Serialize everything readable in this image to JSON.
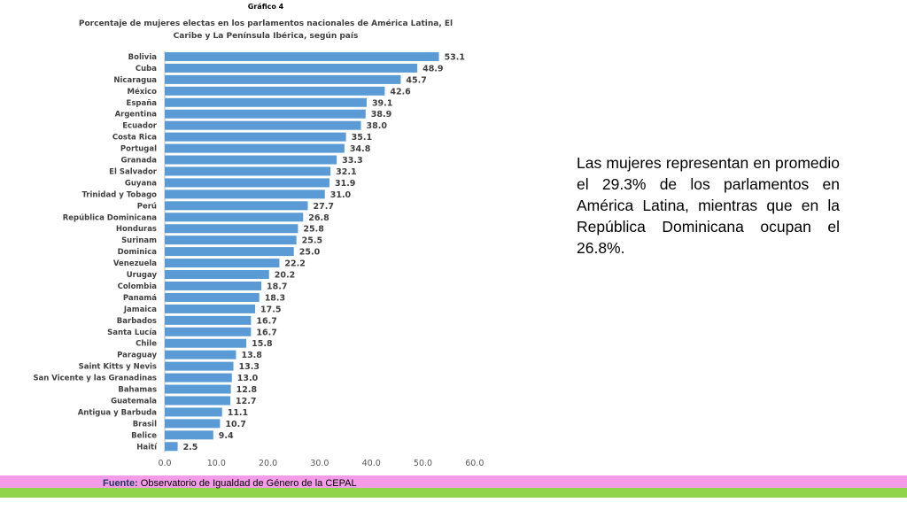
{
  "figure_label": "Gráfico 4",
  "chart_data": {
    "type": "bar",
    "orientation": "horizontal",
    "title": "Porcentaje de mujeres electas en los parlamentos nacionales de América Latina, El Caribe y La Península Ibérica, según país",
    "categories": [
      "Bolivia",
      "Cuba",
      "Nicaragua",
      "México",
      "España",
      "Argentina",
      "Ecuador",
      "Costa Rica",
      "Portugal",
      "Granada",
      "El Salvador",
      "Guyana",
      "Trinidad y Tobago",
      "Perú",
      "República Dominicana",
      "Honduras",
      "Surinam",
      "Dominica",
      "Venezuela",
      "Urugay",
      "Colombia",
      "Panamá",
      "Jamaica",
      "Barbados",
      "Santa Lucía",
      "Chile",
      "Paraguay",
      "Saint Kitts y Nevis",
      "San Vicente y las Granadinas",
      "Bahamas",
      "Guatemala",
      "Antigua y Barbuda",
      "Brasil",
      "Belice",
      "Haití"
    ],
    "values": [
      53.1,
      48.9,
      45.7,
      42.6,
      39.1,
      38.9,
      38.0,
      35.1,
      34.8,
      33.3,
      32.1,
      31.9,
      31.0,
      27.7,
      26.8,
      25.8,
      25.5,
      25.0,
      22.2,
      20.2,
      18.7,
      18.3,
      17.5,
      16.7,
      16.7,
      15.8,
      13.8,
      13.3,
      13.0,
      12.8,
      12.7,
      11.1,
      10.7,
      9.4,
      2.5
    ],
    "value_labels": [
      "53.1",
      "48.9",
      "45.7",
      "42.6",
      "39.1",
      "38.9",
      "38.0",
      "35.1",
      "34.8",
      "33.3",
      "32.1",
      "31.9",
      "31.0",
      "27.7",
      "26.8",
      "25.8",
      "25.5",
      "25.0",
      "22.2",
      "20.2",
      "18.7",
      "18.3",
      "17.5",
      "16.7",
      "16.7",
      "15.8",
      "13.8",
      "13.3",
      "13.0",
      "12.8",
      "12.7",
      "11.1",
      "10.7",
      "9.4",
      "2.5"
    ],
    "xlim": [
      0,
      60
    ],
    "xticks": [
      "0.0",
      "10.0",
      "20.0",
      "30.0",
      "40.0",
      "50.0",
      "60.0"
    ],
    "grid": false,
    "bar_color": "#5b9bd5"
  },
  "side_text": "Las mujeres representan en promedio el 29.3% de los parlamentos en América Latina, mientras que en la República Dominicana ocupan el 26.8%.",
  "source": {
    "label": "Fuente:",
    "text": " Observatorio de Igualdad de Género de la CEPAL"
  },
  "colors": {
    "band_pink": "#f59ce8",
    "band_green": "#8fd44a"
  }
}
